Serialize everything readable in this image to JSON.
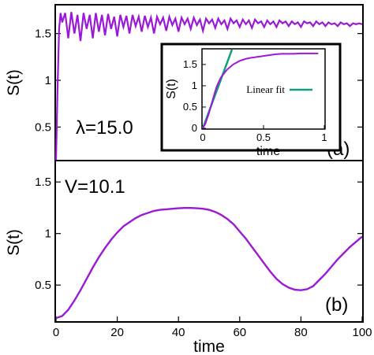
{
  "chart_data": [
    {
      "id": "a",
      "type": "line",
      "panel_label": "(a)",
      "annotation": "λ=15.0",
      "ylabel": "S(t)",
      "xlim": [
        0,
        100
      ],
      "ylim": [
        0.15,
        1.8
      ],
      "yticks": [
        "0.5",
        "1",
        "1.5"
      ],
      "ytick_values": [
        0.5,
        1,
        1.5
      ],
      "color": "#9b19d6",
      "series": [
        {
          "x": [
            0,
            0.5,
            1,
            1.5,
            2,
            3,
            4,
            5,
            6,
            7,
            8,
            9,
            10,
            11,
            12,
            13,
            14,
            15,
            16,
            17,
            18,
            19,
            20,
            21,
            22,
            23,
            24,
            25,
            26,
            27,
            28,
            29,
            30,
            31,
            32,
            33,
            34,
            35,
            36,
            37,
            38,
            39,
            40,
            41,
            42,
            43,
            44,
            45,
            46,
            47,
            48,
            49,
            50,
            51,
            52,
            53,
            54,
            55,
            56,
            57,
            58,
            59,
            60,
            61,
            62,
            63,
            64,
            65,
            66,
            67,
            68,
            69,
            70,
            71,
            72,
            73,
            74,
            75,
            76,
            77,
            78,
            79,
            80,
            81,
            82,
            83,
            84,
            85,
            86,
            87,
            88,
            89,
            90,
            91,
            92,
            93,
            94,
            95,
            96,
            97,
            98,
            99,
            100
          ],
          "y": [
            0.15,
            0.9,
            1.55,
            1.72,
            1.62,
            1.72,
            1.45,
            1.73,
            1.5,
            1.7,
            1.42,
            1.72,
            1.55,
            1.7,
            1.45,
            1.72,
            1.52,
            1.7,
            1.48,
            1.71,
            1.55,
            1.68,
            1.47,
            1.7,
            1.57,
            1.69,
            1.5,
            1.7,
            1.58,
            1.68,
            1.52,
            1.69,
            1.57,
            1.67,
            1.5,
            1.68,
            1.6,
            1.67,
            1.53,
            1.68,
            1.59,
            1.66,
            1.52,
            1.67,
            1.6,
            1.66,
            1.55,
            1.67,
            1.59,
            1.65,
            1.53,
            1.66,
            1.61,
            1.65,
            1.56,
            1.66,
            1.6,
            1.64,
            1.55,
            1.66,
            1.61,
            1.64,
            1.57,
            1.65,
            1.6,
            1.64,
            1.56,
            1.65,
            1.61,
            1.63,
            1.57,
            1.64,
            1.6,
            1.63,
            1.57,
            1.64,
            1.61,
            1.63,
            1.58,
            1.63,
            1.6,
            1.62,
            1.57,
            1.63,
            1.61,
            1.62,
            1.58,
            1.63,
            1.6,
            1.62,
            1.58,
            1.62,
            1.6,
            1.61,
            1.58,
            1.62,
            1.6,
            1.61,
            1.58,
            1.61,
            1.6,
            1.61,
            1.6
          ]
        }
      ],
      "inset": {
        "type": "line",
        "xlabel": "time",
        "ylabel": "S(t)",
        "xlim": [
          0,
          1
        ],
        "ylim": [
          0,
          1.85
        ],
        "xticks": [
          "0",
          "0.5",
          "1"
        ],
        "xtick_values": [
          0,
          0.5,
          1
        ],
        "yticks": [
          "0",
          "0.5",
          "1",
          "1.5"
        ],
        "ytick_values": [
          0,
          0.5,
          1,
          1.5
        ],
        "legend": "Linear fit",
        "legend_position": "center-right",
        "series": [
          {
            "x": [
              0,
              0.02,
              0.05,
              0.08,
              0.1,
              0.12,
              0.15,
              0.2,
              0.25,
              0.3,
              0.35,
              0.4,
              0.45,
              0.5,
              0.55,
              0.6,
              0.65,
              0.7,
              0.75,
              0.8,
              0.85,
              0.9,
              0.95
            ],
            "y": [
              0,
              0.1,
              0.35,
              0.65,
              0.85,
              1.02,
              1.2,
              1.38,
              1.5,
              1.58,
              1.63,
              1.66,
              1.68,
              1.7,
              1.72,
              1.74,
              1.75,
              1.75,
              1.75,
              1.76,
              1.76,
              1.76,
              1.76
            ],
            "color": "#9b19d6"
          },
          {
            "name": "Linear fit",
            "x": [
              0,
              0.24
            ],
            "y": [
              0,
              1.85
            ],
            "color": "#129e7d"
          }
        ]
      }
    },
    {
      "id": "b",
      "type": "line",
      "panel_label": "(b)",
      "annotation": "V=10.1",
      "xlabel": "time",
      "ylabel": "S(t)",
      "xlim": [
        0,
        100
      ],
      "ylim": [
        0.15,
        1.7
      ],
      "xticks": [
        "0",
        "20",
        "40",
        "60",
        "80",
        "100"
      ],
      "xtick_values": [
        0,
        20,
        40,
        60,
        80,
        100
      ],
      "yticks": [
        "0.5",
        "1",
        "1.5"
      ],
      "ytick_values": [
        0.5,
        1,
        1.5
      ],
      "color": "#9b19d6",
      "series": [
        {
          "x": [
            0,
            2,
            4,
            6,
            8,
            10,
            12,
            14,
            16,
            18,
            20,
            22,
            24,
            26,
            28,
            30,
            32,
            34,
            36,
            38,
            40,
            42,
            44,
            46,
            48,
            50,
            52,
            54,
            56,
            58,
            60,
            62,
            64,
            66,
            68,
            70,
            72,
            74,
            76,
            78,
            80,
            82,
            84,
            86,
            88,
            90,
            92,
            94,
            96,
            98,
            100
          ],
          "y": [
            0.18,
            0.2,
            0.26,
            0.35,
            0.45,
            0.56,
            0.67,
            0.77,
            0.86,
            0.94,
            1.01,
            1.07,
            1.11,
            1.15,
            1.18,
            1.2,
            1.22,
            1.23,
            1.235,
            1.24,
            1.245,
            1.248,
            1.248,
            1.245,
            1.24,
            1.23,
            1.21,
            1.18,
            1.14,
            1.09,
            1.02,
            0.95,
            0.87,
            0.79,
            0.71,
            0.63,
            0.56,
            0.51,
            0.475,
            0.455,
            0.45,
            0.46,
            0.49,
            0.55,
            0.61,
            0.68,
            0.75,
            0.81,
            0.87,
            0.92,
            0.97
          ]
        }
      ]
    }
  ]
}
